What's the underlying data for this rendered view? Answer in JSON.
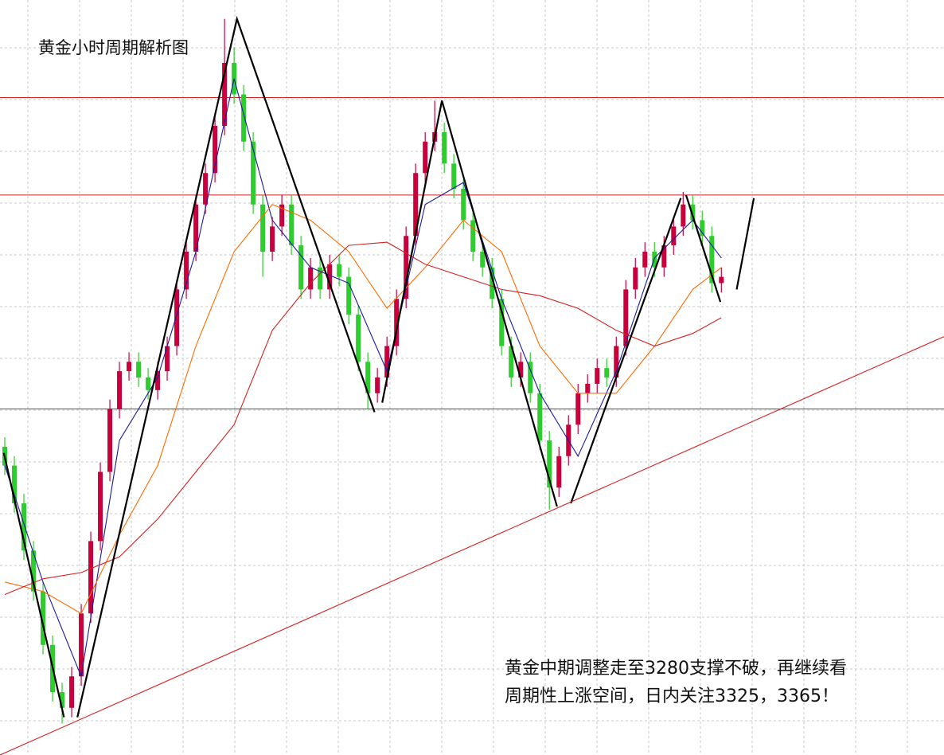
{
  "chart_data": {
    "type": "candlestick",
    "title": "黄金小时周期解析图",
    "annotation": [
      "黄金中期调整走至3280支撑不破，再继续看",
      "周期性上涨空间，日内关注3325，3365！"
    ],
    "xlim": [
      -0.5,
      98.3
    ],
    "ylim": [
      3170,
      3410
    ],
    "up_color": "#c8003c",
    "down_color": "#2ecc2e",
    "open": [
      3268,
      3262,
      3250,
      3235,
      3222,
      3205,
      3190,
      3185,
      3195,
      3215,
      3238,
      3260,
      3280,
      3292,
      3295,
      3290,
      3286,
      3292,
      3300,
      3318,
      3330,
      3345,
      3355,
      3370,
      3390,
      3380,
      3365,
      3345,
      3330,
      3338,
      3345,
      3332,
      3318,
      3325,
      3318,
      3326,
      3322,
      3310,
      3295,
      3285,
      3290,
      3300,
      3315,
      3335,
      3355,
      3365,
      3368,
      3358,
      3350,
      3340,
      3330,
      3325,
      3315,
      3300,
      3290,
      3295,
      3285,
      3270,
      3255,
      3265,
      3275,
      3285,
      3288,
      3293,
      3290,
      3300,
      3318,
      3325,
      3330,
      3325,
      3332,
      3338,
      3345,
      3340,
      3335,
      3320
    ],
    "high": [
      3271,
      3265,
      3253,
      3238,
      3225,
      3208,
      3193,
      3198,
      3218,
      3241,
      3263,
      3283,
      3295,
      3298,
      3298,
      3293,
      3295,
      3303,
      3321,
      3333,
      3348,
      3358,
      3373,
      3404,
      3395,
      3383,
      3368,
      3348,
      3341,
      3348,
      3348,
      3335,
      3328,
      3328,
      3329,
      3329,
      3325,
      3313,
      3298,
      3293,
      3303,
      3318,
      3338,
      3358,
      3368,
      3378,
      3371,
      3361,
      3353,
      3343,
      3333,
      3328,
      3318,
      3303,
      3298,
      3298,
      3288,
      3273,
      3268,
      3278,
      3288,
      3291,
      3296,
      3296,
      3303,
      3321,
      3328,
      3333,
      3333,
      3335,
      3341,
      3349,
      3348,
      3343,
      3338,
      3325
    ],
    "low": [
      3259,
      3247,
      3232,
      3219,
      3202,
      3187,
      3180,
      3182,
      3192,
      3212,
      3235,
      3257,
      3277,
      3289,
      3287,
      3283,
      3283,
      3289,
      3297,
      3315,
      3327,
      3342,
      3352,
      3367,
      3377,
      3362,
      3342,
      3322,
      3327,
      3335,
      3329,
      3315,
      3315,
      3315,
      3315,
      3319,
      3307,
      3292,
      3280,
      3282,
      3287,
      3297,
      3312,
      3332,
      3352,
      3362,
      3355,
      3347,
      3337,
      3327,
      3322,
      3312,
      3297,
      3287,
      3287,
      3282,
      3267,
      3248,
      3252,
      3262,
      3272,
      3282,
      3285,
      3287,
      3287,
      3297,
      3315,
      3322,
      3322,
      3322,
      3329,
      3335,
      3337,
      3332,
      3317,
      3317
    ],
    "close": [
      3262,
      3250,
      3235,
      3222,
      3205,
      3190,
      3185,
      3195,
      3215,
      3238,
      3260,
      3280,
      3292,
      3295,
      3290,
      3286,
      3292,
      3300,
      3318,
      3330,
      3345,
      3355,
      3370,
      3390,
      3380,
      3365,
      3345,
      3330,
      3338,
      3345,
      3332,
      3318,
      3325,
      3318,
      3326,
      3322,
      3310,
      3295,
      3285,
      3290,
      3300,
      3315,
      3335,
      3355,
      3365,
      3368,
      3358,
      3350,
      3340,
      3330,
      3325,
      3315,
      3300,
      3290,
      3295,
      3285,
      3270,
      3255,
      3265,
      3275,
      3285,
      3288,
      3293,
      3290,
      3300,
      3318,
      3325,
      3330,
      3325,
      3332,
      3338,
      3345,
      3340,
      3335,
      3320,
      3322
    ],
    "series": [
      {
        "color": "#1a1a9a",
        "x": [
          0,
          4,
          8,
          12,
          16,
          20,
          24,
          28,
          32,
          36,
          40,
          44,
          48,
          52,
          56,
          60,
          64,
          68,
          72,
          75
        ],
        "values": [
          3262,
          3225,
          3195,
          3270,
          3290,
          3330,
          3385,
          3340,
          3325,
          3320,
          3292,
          3345,
          3352,
          3315,
          3285,
          3265,
          3292,
          3328,
          3340,
          3328
        ]
      },
      {
        "color": "#ff6a00",
        "x": [
          0,
          4,
          8,
          12,
          16,
          20,
          24,
          28,
          32,
          36,
          40,
          44,
          48,
          52,
          56,
          60,
          64,
          68,
          72,
          75
        ],
        "values": [
          3225,
          3222,
          3215,
          3240,
          3262,
          3300,
          3330,
          3345,
          3340,
          3330,
          3312,
          3325,
          3340,
          3330,
          3300,
          3285,
          3285,
          3300,
          3318,
          3325
        ]
      },
      {
        "color": "#d42020",
        "x": [
          0,
          4,
          8,
          12,
          16,
          20,
          24,
          28,
          32,
          36,
          40,
          44,
          48,
          52,
          56,
          60,
          64,
          68,
          72,
          75
        ],
        "values": [
          3221,
          3226,
          3228,
          3233,
          3245,
          3260,
          3275,
          3305,
          3320,
          3332,
          3333,
          3326,
          3322,
          3318,
          3316,
          3312,
          3305,
          3300,
          3304,
          3309
        ]
      },
      {
        "color": "#000000",
        "x": [
          -0.1,
          6.2,
          null,
          7.6,
          24.3,
          38.7,
          null,
          39.5,
          45.75,
          57.8,
          null,
          59.25,
          70.75,
          null,
          71.3,
          74.9,
          null,
          76.6,
          78.4
        ],
        "values": [
          3266,
          3182,
          null,
          3182,
          3404,
          3279,
          null,
          3282,
          3378,
          3249,
          null,
          3250,
          3347,
          null,
          3348,
          3314,
          null,
          3318,
          3347
        ]
      },
      {
        "color": "#d42020",
        "x": [
          -0.5,
          98.3
        ],
        "values": [
          3170,
          3303
        ]
      }
    ],
    "hlines": [
      3379,
      3348,
      3280
    ],
    "hline_color": "#d42020"
  }
}
